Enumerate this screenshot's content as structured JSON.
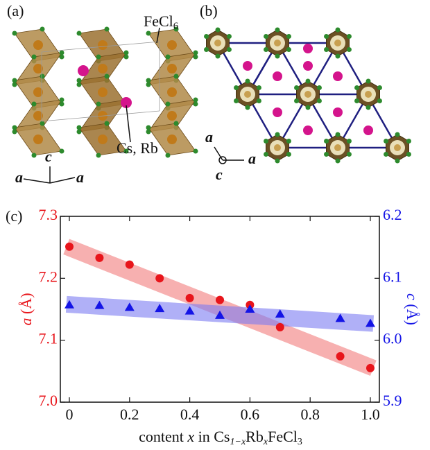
{
  "panels": {
    "a": {
      "label": "(a)",
      "formula": [
        "FeCl",
        "6"
      ],
      "cation": "Cs, Rb",
      "axes": [
        "c",
        "a",
        "a"
      ]
    },
    "b": {
      "label": "(b)",
      "axes": [
        "a",
        "c",
        "a"
      ]
    }
  },
  "chart_data": {
    "type": "scatter",
    "panel_label": "(c)",
    "xlabel": [
      "content ",
      "x",
      " in Cs",
      "1−x",
      "Rb",
      "x",
      "FeCl",
      "3"
    ],
    "ylabel": [
      "a",
      " (Å)"
    ],
    "y2label": [
      "c",
      " (Å)"
    ],
    "xlim": [
      -0.03,
      1.03
    ],
    "xticks": [
      0,
      0.2,
      0.4,
      0.6,
      0.8,
      {
        "value": 1,
        "label": "1.0"
      }
    ],
    "ylim": [
      7,
      7.3
    ],
    "yticks": [
      {
        "value": 7,
        "label": "7.0"
      },
      7.1,
      7.2,
      7.3
    ],
    "y2lim": [
      5.9,
      6.2
    ],
    "y2ticks": [
      5.9,
      {
        "value": 6,
        "label": "6.0"
      },
      6.1,
      6.2
    ],
    "x": [
      0,
      0.1,
      0.2,
      0.3,
      0.4,
      0.5,
      0.6,
      0.7,
      0.9,
      1
    ],
    "series": [
      {
        "color": "#e8151b",
        "marker": "circle",
        "values": [
          7.251,
          7.233,
          7.222,
          7.2,
          7.168,
          7.165,
          7.157,
          7.121,
          7.074,
          7.055
        ]
      },
      {
        "color": "#1414e6",
        "marker": "triangle",
        "axis": "y2",
        "values": [
          6.057,
          6.056,
          6.053,
          6.051,
          6.047,
          6.04,
          6.05,
          6.042,
          6.035,
          6.027
        ]
      }
    ],
    "fits": [
      {
        "color": "#f27c7c",
        "x": [
          -0.01,
          1.01
        ],
        "values": [
          7.251,
          7.055
        ]
      },
      {
        "color": "#7c7cf2",
        "axis": "y2",
        "x": [
          -0.01,
          1.01
        ],
        "values": [
          6.058,
          6.027
        ]
      }
    ]
  }
}
